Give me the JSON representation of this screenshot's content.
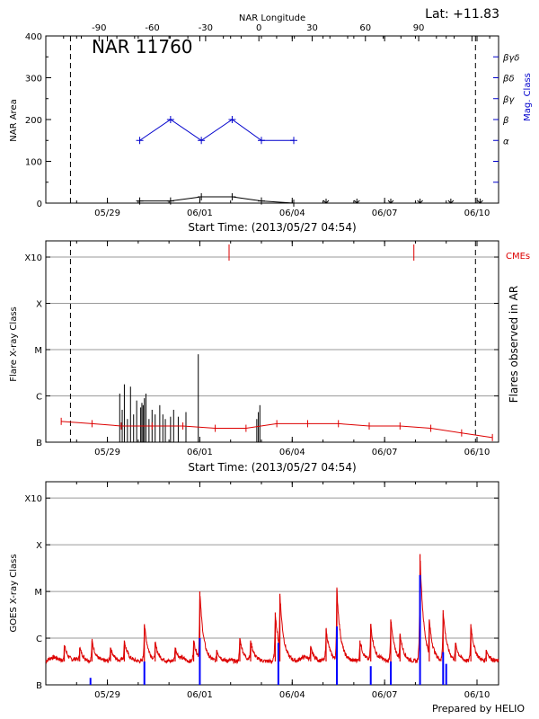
{
  "header": {
    "lat_label": "Lat: +11.83",
    "credit": "Prepared by HELIO"
  },
  "colors": {
    "black": "#000000",
    "blue": "#0000cc",
    "goes_blue": "#0000ff",
    "red": "#dd0000",
    "grid": "#9a9a9a"
  },
  "chart_data": [
    {
      "id": "panel1",
      "type": "line",
      "title": "NAR 11760",
      "top_axis_label": "NAR Longitude",
      "top_axis": {
        "range": [
          -120,
          135
        ],
        "ticks": [
          -90,
          -60,
          -30,
          0,
          30,
          60,
          90
        ],
        "tick_labels": [
          "-90",
          "-60",
          "-30",
          "0",
          "30",
          "60",
          "90"
        ]
      },
      "bottom_axis_label": "Start Time: (2013/05/27 04:54)",
      "x_range": [
        0,
        14.7
      ],
      "x_ticks": [
        2,
        5,
        8,
        11,
        14
      ],
      "x_tick_labels": [
        "05/29",
        "06/01",
        "06/04",
        "06/07",
        "06/10"
      ],
      "ylabel": "NAR Area",
      "ylim": [
        0,
        400
      ],
      "y_ticks": [
        0,
        100,
        200,
        300,
        400
      ],
      "y_tick_labels": [
        "0",
        "100",
        "200",
        "300",
        "400"
      ],
      "right_label": "Mag. Class",
      "right_ticks": [
        {
          "value": 150,
          "label": "α"
        },
        {
          "value": 200,
          "label": "β"
        },
        {
          "value": 250,
          "label": "βγ"
        },
        {
          "value": 300,
          "label": "βδ"
        },
        {
          "value": 350,
          "label": "βγδ"
        }
      ],
      "right_minor_ticks": [
        100,
        50
      ],
      "limb_lines_x": [
        0.8,
        13.95
      ],
      "series": [
        {
          "name": "Mag. Class",
          "color": "#0000cc",
          "x": [
            3.05,
            4.05,
            5.05,
            6.05,
            7.0,
            8.05
          ],
          "y": [
            150,
            200,
            150,
            200,
            150,
            150
          ]
        },
        {
          "name": "NAR Area",
          "color": "#000000",
          "x": [
            3.05,
            4.05,
            5.05,
            6.05,
            7.0,
            8.05
          ],
          "y": [
            5,
            5,
            15,
            15,
            5,
            0
          ]
        }
      ],
      "no_area_days_x": [
        9.1,
        10.1,
        11.2,
        12.15,
        13.15,
        14.1
      ]
    },
    {
      "id": "panel2",
      "type": "bar",
      "xlabel": "Start Time: (2013/05/27 04:54)",
      "x_range": [
        0,
        14.7
      ],
      "x_ticks": [
        2,
        5,
        8,
        11,
        14
      ],
      "x_tick_labels": [
        "05/29",
        "06/01",
        "06/04",
        "06/07",
        "06/10"
      ],
      "ylabel": "Flare X-ray Class",
      "right_label": "Flares observed in AR",
      "cme_label": "CMEs",
      "y_levels": [
        0,
        1,
        2,
        3,
        4
      ],
      "y_level_labels": [
        "B",
        "C",
        "M",
        "X",
        "X10"
      ],
      "ylim": [
        0,
        4.35
      ],
      "limb_lines_x": [
        0.8,
        13.95
      ],
      "cmes_x": [
        5.95,
        11.95
      ],
      "flares": [
        {
          "x": 2.4,
          "level": 1.05
        },
        {
          "x": 2.48,
          "level": 0.7
        },
        {
          "x": 2.55,
          "level": 1.25
        },
        {
          "x": 2.65,
          "level": 0.5
        },
        {
          "x": 2.75,
          "level": 1.2
        },
        {
          "x": 2.85,
          "level": 0.6
        },
        {
          "x": 2.95,
          "level": 0.9
        },
        {
          "x": 3.08,
          "level": 0.75
        },
        {
          "x": 3.12,
          "level": 0.85
        },
        {
          "x": 3.16,
          "level": 0.8
        },
        {
          "x": 3.2,
          "level": 0.95
        },
        {
          "x": 3.25,
          "level": 1.05
        },
        {
          "x": 3.35,
          "level": 0.5
        },
        {
          "x": 3.45,
          "level": 0.7
        },
        {
          "x": 3.55,
          "level": 0.6
        },
        {
          "x": 3.7,
          "level": 0.8
        },
        {
          "x": 3.8,
          "level": 0.6
        },
        {
          "x": 3.88,
          "level": 0.5
        },
        {
          "x": 4.05,
          "level": 0.55
        },
        {
          "x": 4.15,
          "level": 0.7
        },
        {
          "x": 4.3,
          "level": 0.55
        },
        {
          "x": 4.55,
          "level": 0.65
        },
        {
          "x": 4.95,
          "level": 1.9
        },
        {
          "x": 6.85,
          "level": 0.5
        },
        {
          "x": 6.9,
          "level": 0.65
        },
        {
          "x": 6.95,
          "level": 0.8
        }
      ],
      "daily_series": {
        "name": "Flares observed in AR",
        "color": "#dd0000",
        "x": [
          0.5,
          1.5,
          2.45,
          3.45,
          4.45,
          5.5,
          6.5,
          7.5,
          8.5,
          9.5,
          10.5,
          11.5,
          12.5,
          13.5,
          14.5
        ],
        "y": [
          0.45,
          0.4,
          0.35,
          0.35,
          0.35,
          0.3,
          0.3,
          0.4,
          0.4,
          0.4,
          0.35,
          0.35,
          0.3,
          0.2,
          0.1
        ]
      }
    },
    {
      "id": "panel3",
      "type": "line",
      "xlabel": "",
      "x_range": [
        0,
        14.7
      ],
      "x_ticks": [
        2,
        5,
        8,
        11,
        14
      ],
      "x_tick_labels": [
        "05/29",
        "06/01",
        "06/04",
        "06/07",
        "06/10"
      ],
      "ylabel": "GOES X-ray Class",
      "y_levels": [
        0,
        1,
        2,
        3,
        4
      ],
      "y_level_labels": [
        "B",
        "C",
        "M",
        "X",
        "X10"
      ],
      "ylim": [
        0,
        4.35
      ],
      "series": [
        {
          "name": "GOES long",
          "color": "#dd0000",
          "baseline": 0.5,
          "peaks": [
            {
              "x": 0.6,
              "level": 0.85
            },
            {
              "x": 1.1,
              "level": 0.8
            },
            {
              "x": 1.5,
              "level": 0.95
            },
            {
              "x": 2.1,
              "level": 0.8
            },
            {
              "x": 2.55,
              "level": 0.95
            },
            {
              "x": 3.2,
              "level": 1.3
            },
            {
              "x": 3.55,
              "level": 0.9
            },
            {
              "x": 4.2,
              "level": 0.8
            },
            {
              "x": 4.8,
              "level": 0.95
            },
            {
              "x": 5.0,
              "level": 2.0
            },
            {
              "x": 5.55,
              "level": 0.75
            },
            {
              "x": 6.3,
              "level": 1.0
            },
            {
              "x": 6.65,
              "level": 0.95
            },
            {
              "x": 7.45,
              "level": 1.55
            },
            {
              "x": 7.6,
              "level": 1.95
            },
            {
              "x": 8.6,
              "level": 0.8
            },
            {
              "x": 9.1,
              "level": 1.2
            },
            {
              "x": 9.45,
              "level": 2.05
            },
            {
              "x": 10.2,
              "level": 0.95
            },
            {
              "x": 10.55,
              "level": 1.3
            },
            {
              "x": 11.2,
              "level": 1.4
            },
            {
              "x": 11.5,
              "level": 1.1
            },
            {
              "x": 12.15,
              "level": 2.8
            },
            {
              "x": 12.45,
              "level": 1.4
            },
            {
              "x": 12.9,
              "level": 1.6
            },
            {
              "x": 13.3,
              "level": 0.9
            },
            {
              "x": 13.8,
              "level": 1.3
            },
            {
              "x": 14.3,
              "level": 0.75
            }
          ]
        },
        {
          "name": "GOES short",
          "color": "#0000ff",
          "spikes": [
            {
              "x": 1.45,
              "level": 0.15
            },
            {
              "x": 3.2,
              "level": 0.5
            },
            {
              "x": 5.0,
              "level": 1.0
            },
            {
              "x": 7.55,
              "level": 0.9
            },
            {
              "x": 9.45,
              "level": 1.25
            },
            {
              "x": 10.55,
              "level": 0.4
            },
            {
              "x": 11.2,
              "level": 0.5
            },
            {
              "x": 12.15,
              "level": 2.35
            },
            {
              "x": 12.9,
              "level": 0.7
            },
            {
              "x": 13.0,
              "level": 0.45
            }
          ]
        }
      ]
    }
  ]
}
